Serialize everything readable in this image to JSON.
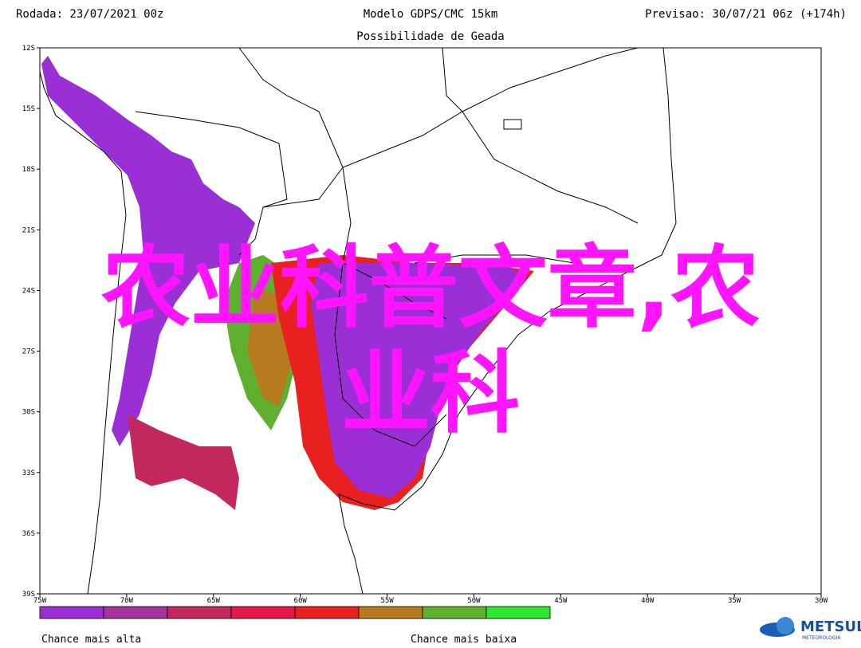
{
  "header": {
    "run": "Rodada: 23/07/2021 00z",
    "model": "Modelo GDPS/CMC 15km",
    "forecast": "Previsao: 30/07/21 06z (+174h)",
    "subtitle": "Possibilidade de Geada"
  },
  "map": {
    "lat_labels": [
      "12S",
      "15S",
      "18S",
      "21S",
      "24S",
      "27S",
      "30S",
      "33S",
      "36S",
      "39S"
    ],
    "lon_labels": [
      "75W",
      "70W",
      "65W",
      "60W",
      "55W",
      "50W",
      "45W",
      "40W",
      "35W",
      "30W"
    ]
  },
  "legend": {
    "colors": [
      "#9b2fd6",
      "#a8329c",
      "#c2285e",
      "#e6184a",
      "#e82020",
      "#b87a1e",
      "#5fb02e",
      "#2ee82e"
    ],
    "high_label": "Chance mais alta",
    "low_label": "Chance mais baixa"
  },
  "watermark": {
    "line1": "农业科普文章,农",
    "line2": "业科"
  },
  "logo": {
    "name": "METSUL",
    "tagline": "METEOROLOGIA"
  }
}
